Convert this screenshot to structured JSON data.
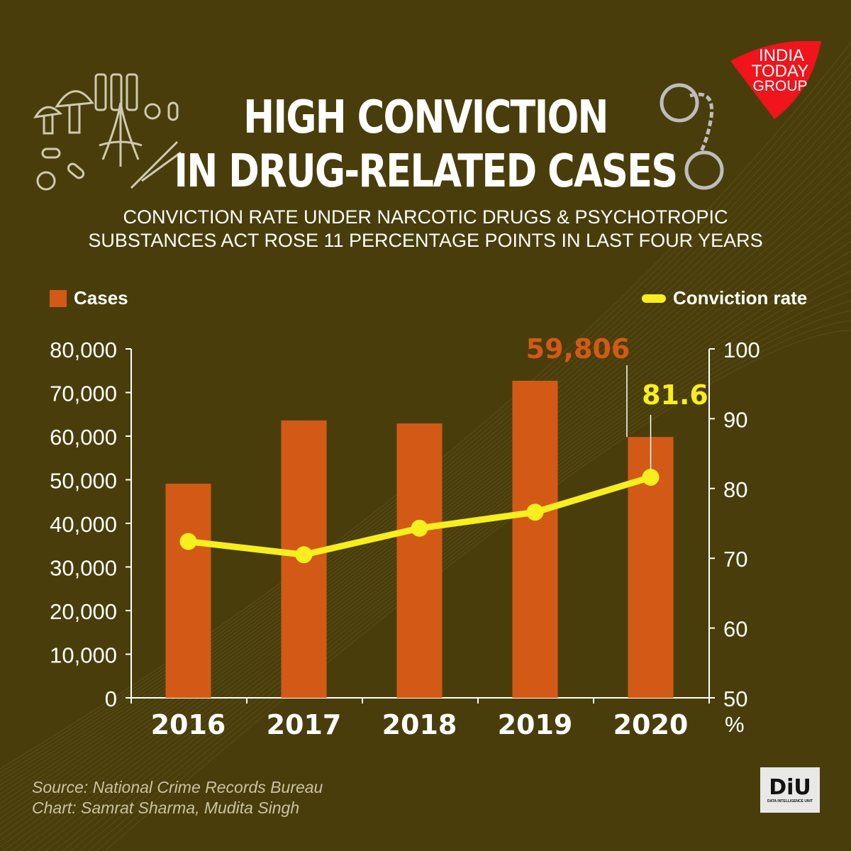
{
  "title_line1": "HIGH CONVICTION",
  "title_line2": "IN DRUG-RELATED CASES",
  "subtitle_line1": "CONVICTION RATE UNDER NARCOTIC DRUGS & PSYCHOTROPIC",
  "subtitle_line2": "SUBSTANCES ACT ROSE 11 PERCENTAGE POINTS IN LAST FOUR YEARS",
  "source": "Source: National Crime Records Bureau",
  "credit": "Chart: Samrat Sharma, Mudita Singh",
  "logo": {
    "line1": "INDIA",
    "line2": "TODAY",
    "line3": "GROUP",
    "color": "#f0141c"
  },
  "diu_logo": {
    "text": "DiU",
    "tagline": "DATA INTELLIGENCE UNIT"
  },
  "chart_data": {
    "type": "bar+line",
    "categories": [
      "2016",
      "2017",
      "2018",
      "2019",
      "2020"
    ],
    "series": [
      {
        "name": "Cases",
        "type": "bar",
        "axis": "left",
        "color": "#d35a16",
        "values": [
          49100,
          63600,
          62900,
          72700,
          59806
        ]
      },
      {
        "name": "Conviction rate",
        "type": "line",
        "axis": "right",
        "color": "#f7ee1e",
        "values": [
          72.4,
          70.5,
          74.3,
          76.6,
          81.6
        ]
      }
    ],
    "annotations": [
      {
        "series": "Cases",
        "category": "2020",
        "label": "59,806"
      },
      {
        "series": "Conviction rate",
        "category": "2020",
        "label": "81.6"
      }
    ],
    "y_left": {
      "range": [
        0,
        80000
      ],
      "ticks": [
        "0",
        "10,000",
        "20,000",
        "30,000",
        "40,000",
        "50,000",
        "60,000",
        "70,000",
        "80,000"
      ]
    },
    "y_right": {
      "range": [
        50,
        100
      ],
      "ticks": [
        "50",
        "60",
        "70",
        "80",
        "90",
        "100"
      ],
      "unit": "%"
    },
    "legend_placement": "top",
    "grid": false
  }
}
